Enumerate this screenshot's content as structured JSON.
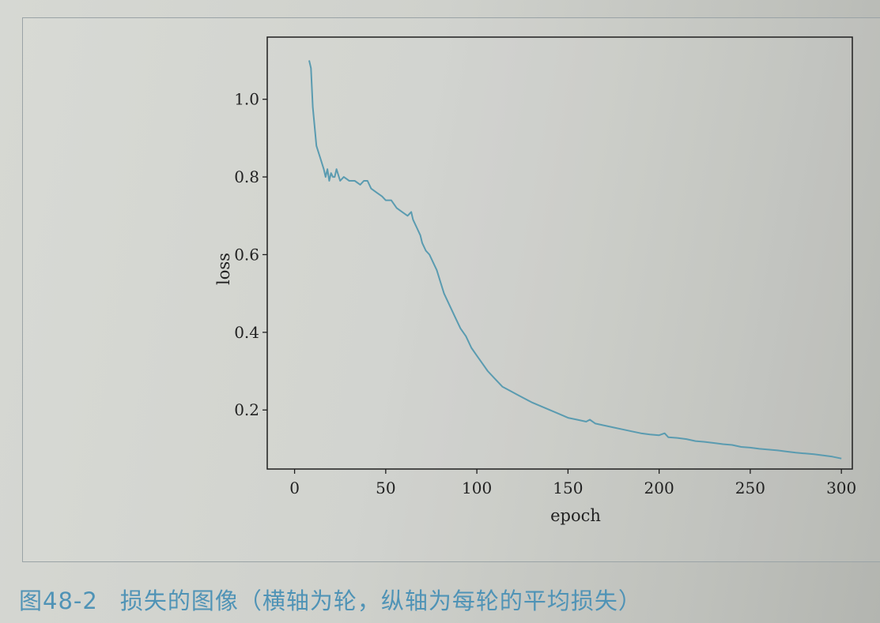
{
  "caption": {
    "number": "图48-2",
    "text": "损失的图像（横轴为轮，纵轴为每轮的平均损失）"
  },
  "chart_data": {
    "type": "line",
    "xlabel": "epoch",
    "ylabel": "loss",
    "xlim": [
      -15,
      306
    ],
    "ylim": [
      0.048,
      1.16
    ],
    "xticks": [
      0,
      50,
      100,
      150,
      200,
      250,
      300
    ],
    "yticks": [
      0.2,
      0.4,
      0.6,
      0.8,
      1.0
    ],
    "xtick_labels": [
      "0",
      "50",
      "100",
      "150",
      "200",
      "250",
      "300"
    ],
    "ytick_labels": [
      "0.2",
      "0.4",
      "0.6",
      "0.8",
      "1.0"
    ],
    "grid": false,
    "line_color": "#5a9bb0",
    "series": [
      {
        "x": [
          8,
          9,
          10,
          12,
          14,
          16,
          17,
          18,
          19,
          20,
          21,
          22,
          23,
          25,
          27,
          30,
          33,
          36,
          38,
          40,
          42,
          45,
          48,
          50,
          53,
          56,
          59,
          62,
          64,
          65,
          67,
          69,
          70,
          72,
          74,
          76,
          78,
          80,
          82,
          85,
          88,
          91,
          94,
          97,
          100,
          103,
          106,
          110,
          114,
          118,
          122,
          126,
          130,
          135,
          140,
          145,
          150,
          155,
          160,
          162,
          165,
          170,
          175,
          180,
          185,
          190,
          195,
          200,
          203,
          205,
          210,
          215,
          220,
          225,
          230,
          235,
          240,
          245,
          250,
          255,
          260,
          265,
          270,
          275,
          280,
          285,
          290,
          295,
          300
        ],
        "y": [
          1.1,
          1.08,
          0.98,
          0.88,
          0.85,
          0.82,
          0.8,
          0.82,
          0.79,
          0.81,
          0.8,
          0.8,
          0.82,
          0.79,
          0.8,
          0.79,
          0.79,
          0.78,
          0.79,
          0.79,
          0.77,
          0.76,
          0.75,
          0.74,
          0.74,
          0.72,
          0.71,
          0.7,
          0.71,
          0.69,
          0.67,
          0.65,
          0.63,
          0.61,
          0.6,
          0.58,
          0.56,
          0.53,
          0.5,
          0.47,
          0.44,
          0.41,
          0.39,
          0.36,
          0.34,
          0.32,
          0.3,
          0.28,
          0.26,
          0.25,
          0.24,
          0.23,
          0.22,
          0.21,
          0.2,
          0.19,
          0.18,
          0.175,
          0.17,
          0.175,
          0.165,
          0.16,
          0.155,
          0.15,
          0.145,
          0.14,
          0.137,
          0.135,
          0.14,
          0.13,
          0.128,
          0.125,
          0.12,
          0.118,
          0.115,
          0.112,
          0.11,
          0.105,
          0.103,
          0.1,
          0.098,
          0.096,
          0.093,
          0.09,
          0.088,
          0.086,
          0.083,
          0.08,
          0.075
        ]
      }
    ]
  }
}
